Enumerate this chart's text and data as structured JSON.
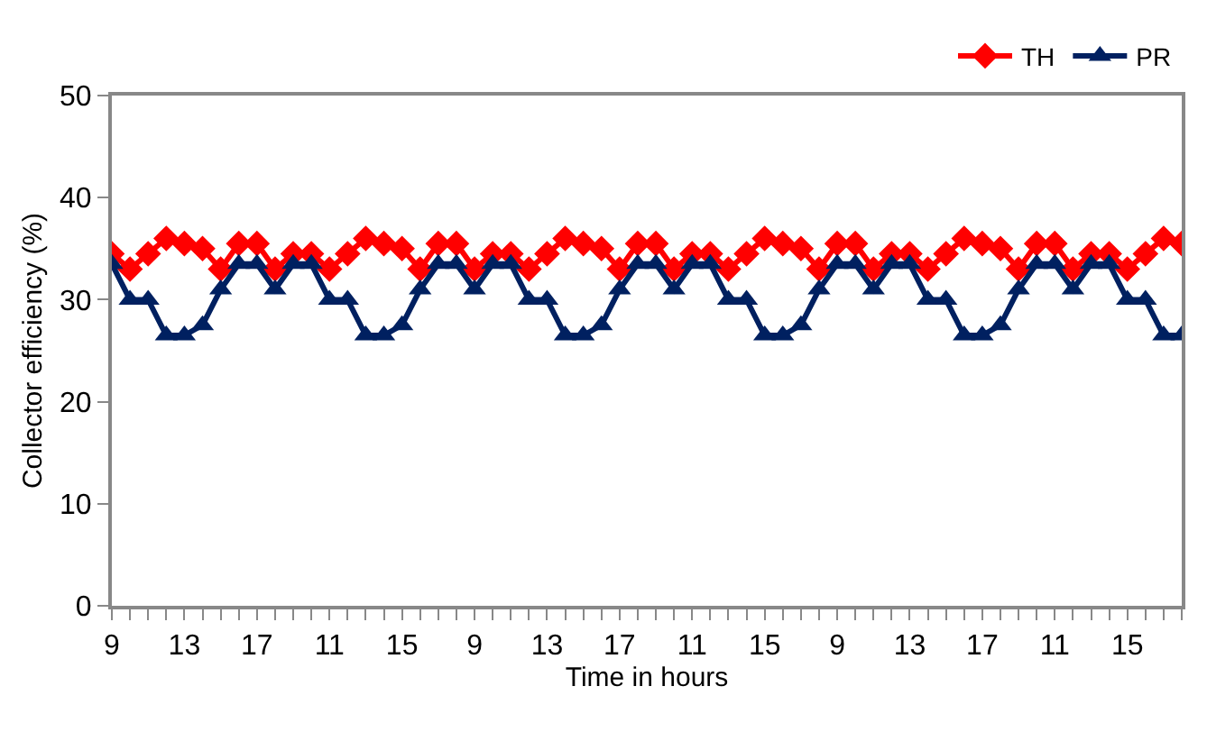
{
  "chart_data": {
    "type": "line",
    "xlabel": "Time in hours",
    "ylabel": "Collector efficiency (%)",
    "categories": [
      "9",
      null,
      null,
      null,
      "13",
      null,
      null,
      null,
      "17",
      null,
      null,
      null,
      "11",
      null,
      null,
      null,
      "15",
      null,
      null,
      null,
      "9",
      null,
      null,
      null,
      "13",
      null,
      null,
      null,
      "17",
      null,
      null,
      null,
      "11",
      null,
      null,
      null,
      "15",
      null,
      null,
      null,
      "9",
      null,
      null,
      null,
      "13",
      null,
      null,
      null,
      "17",
      null,
      null,
      null,
      "11",
      null,
      null,
      null,
      "15",
      null,
      null,
      null
    ],
    "series": [
      {
        "name": "TH",
        "color": "#ff0000",
        "marker": "diamond",
        "values": [
          34.5,
          33,
          34.5,
          36,
          35.5,
          35,
          33,
          35.5,
          35.5,
          33,
          34.5,
          34.5,
          33,
          34.5,
          36,
          35.5,
          35,
          33,
          35.5,
          35.5,
          33,
          34.5,
          34.5,
          33,
          34.5,
          36,
          35.5,
          35,
          33,
          35.5,
          35.5,
          33,
          34.5,
          34.5,
          33,
          34.5,
          36,
          35.5,
          35,
          33,
          35.5,
          35.5,
          33,
          34.5,
          34.5,
          33,
          34.5,
          36,
          35.5,
          35,
          33,
          35.5,
          35.5,
          33,
          34.5,
          34.5,
          33,
          34.5,
          36,
          35.5
        ]
      },
      {
        "name": "PR",
        "color": "#002060",
        "marker": "triangle",
        "values": [
          33.5,
          30,
          30,
          26.5,
          26.5,
          27.5,
          31,
          33.5,
          33.5,
          31,
          33.5,
          33.5,
          30,
          30,
          26.5,
          26.5,
          27.5,
          31,
          33.5,
          33.5,
          31,
          33.5,
          33.5,
          30,
          30,
          26.5,
          26.5,
          27.5,
          31,
          33.5,
          33.5,
          31,
          33.5,
          33.5,
          30,
          30,
          26.5,
          26.5,
          27.5,
          31,
          33.5,
          33.5,
          31,
          33.5,
          33.5,
          30,
          30,
          26.5,
          26.5,
          27.5,
          31,
          33.5,
          33.5,
          31,
          33.5,
          33.5,
          30,
          30,
          26.5,
          26.5
        ]
      }
    ],
    "ylim": [
      0,
      50
    ],
    "yticks": [
      0,
      10,
      20,
      30,
      40,
      50
    ],
    "legend": "top right",
    "line_style": "solid"
  }
}
